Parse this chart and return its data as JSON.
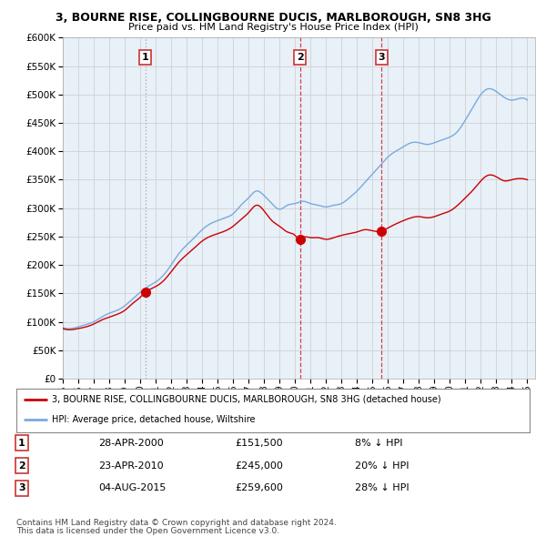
{
  "title1": "3, BOURNE RISE, COLLINGBOURNE DUCIS, MARLBOROUGH, SN8 3HG",
  "title2": "Price paid vs. HM Land Registry's House Price Index (HPI)",
  "ylim": [
    0,
    600000
  ],
  "yticks": [
    0,
    50000,
    100000,
    150000,
    200000,
    250000,
    300000,
    350000,
    400000,
    450000,
    500000,
    550000,
    600000
  ],
  "sale_dates": [
    2000.32,
    2010.31,
    2015.59
  ],
  "sale_prices": [
    151500,
    245000,
    259600
  ],
  "sale_labels": [
    "1",
    "2",
    "3"
  ],
  "vline_styles": [
    "dotted",
    "dashed",
    "dashed"
  ],
  "vline_colors": [
    "#aaaaaa",
    "#cc3333",
    "#cc3333"
  ],
  "legend_red": "3, BOURNE RISE, COLLINGBOURNE DUCIS, MARLBOROUGH, SN8 3HG (detached house)",
  "legend_blue": "HPI: Average price, detached house, Wiltshire",
  "table_rows": [
    [
      "1",
      "28-APR-2000",
      "£151,500",
      "8% ↓ HPI"
    ],
    [
      "2",
      "23-APR-2010",
      "£245,000",
      "20% ↓ HPI"
    ],
    [
      "3",
      "04-AUG-2015",
      "£259,600",
      "28% ↓ HPI"
    ]
  ],
  "footnote1": "Contains HM Land Registry data © Crown copyright and database right 2024.",
  "footnote2": "This data is licensed under the Open Government Licence v3.0.",
  "red_color": "#cc0000",
  "blue_color": "#7aaadd",
  "chart_bg": "#e8f0f8",
  "bg_color": "#ffffff",
  "grid_color": "#cccccc",
  "hpi_points": [
    [
      1995.0,
      90000
    ],
    [
      1995.5,
      88000
    ],
    [
      1996.0,
      91000
    ],
    [
      1996.5,
      95000
    ],
    [
      1997.0,
      100000
    ],
    [
      1997.5,
      108000
    ],
    [
      1998.0,
      115000
    ],
    [
      1998.5,
      120000
    ],
    [
      1999.0,
      128000
    ],
    [
      1999.5,
      140000
    ],
    [
      2000.0,
      152000
    ],
    [
      2000.5,
      162000
    ],
    [
      2001.0,
      170000
    ],
    [
      2001.5,
      182000
    ],
    [
      2002.0,
      200000
    ],
    [
      2002.5,
      220000
    ],
    [
      2003.0,
      235000
    ],
    [
      2003.5,
      248000
    ],
    [
      2004.0,
      262000
    ],
    [
      2004.5,
      272000
    ],
    [
      2005.0,
      278000
    ],
    [
      2005.5,
      283000
    ],
    [
      2006.0,
      290000
    ],
    [
      2006.5,
      305000
    ],
    [
      2007.0,
      318000
    ],
    [
      2007.5,
      330000
    ],
    [
      2008.0,
      322000
    ],
    [
      2008.5,
      308000
    ],
    [
      2009.0,
      298000
    ],
    [
      2009.5,
      305000
    ],
    [
      2010.0,
      308000
    ],
    [
      2010.5,
      312000
    ],
    [
      2011.0,
      308000
    ],
    [
      2011.5,
      305000
    ],
    [
      2012.0,
      302000
    ],
    [
      2012.5,
      305000
    ],
    [
      2013.0,
      308000
    ],
    [
      2013.5,
      318000
    ],
    [
      2014.0,
      330000
    ],
    [
      2014.5,
      345000
    ],
    [
      2015.0,
      360000
    ],
    [
      2015.5,
      375000
    ],
    [
      2016.0,
      390000
    ],
    [
      2016.5,
      400000
    ],
    [
      2017.0,
      408000
    ],
    [
      2017.5,
      415000
    ],
    [
      2018.0,
      415000
    ],
    [
      2018.5,
      412000
    ],
    [
      2019.0,
      415000
    ],
    [
      2019.5,
      420000
    ],
    [
      2020.0,
      425000
    ],
    [
      2020.5,
      435000
    ],
    [
      2021.0,
      455000
    ],
    [
      2021.5,
      478000
    ],
    [
      2022.0,
      500000
    ],
    [
      2022.5,
      510000
    ],
    [
      2023.0,
      505000
    ],
    [
      2023.5,
      495000
    ],
    [
      2024.0,
      490000
    ],
    [
      2024.5,
      493000
    ],
    [
      2025.0,
      490000
    ]
  ],
  "red_points": [
    [
      1995.0,
      88000
    ],
    [
      1995.5,
      86000
    ],
    [
      1996.0,
      88000
    ],
    [
      1996.5,
      91000
    ],
    [
      1997.0,
      96000
    ],
    [
      1997.5,
      103000
    ],
    [
      1998.0,
      108000
    ],
    [
      1998.5,
      113000
    ],
    [
      1999.0,
      120000
    ],
    [
      1999.5,
      132000
    ],
    [
      2000.0,
      143000
    ],
    [
      2000.32,
      151500
    ],
    [
      2000.5,
      155000
    ],
    [
      2001.0,
      162000
    ],
    [
      2001.5,
      172000
    ],
    [
      2002.0,
      188000
    ],
    [
      2002.5,
      205000
    ],
    [
      2003.0,
      218000
    ],
    [
      2003.5,
      230000
    ],
    [
      2004.0,
      242000
    ],
    [
      2004.5,
      250000
    ],
    [
      2005.0,
      255000
    ],
    [
      2005.5,
      260000
    ],
    [
      2006.0,
      268000
    ],
    [
      2006.5,
      280000
    ],
    [
      2007.0,
      292000
    ],
    [
      2007.5,
      305000
    ],
    [
      2008.0,
      295000
    ],
    [
      2008.5,
      278000
    ],
    [
      2009.0,
      268000
    ],
    [
      2009.5,
      258000
    ],
    [
      2010.0,
      252000
    ],
    [
      2010.31,
      245000
    ],
    [
      2010.5,
      248000
    ],
    [
      2011.0,
      248000
    ],
    [
      2011.5,
      248000
    ],
    [
      2012.0,
      245000
    ],
    [
      2012.5,
      248000
    ],
    [
      2013.0,
      252000
    ],
    [
      2013.5,
      255000
    ],
    [
      2014.0,
      258000
    ],
    [
      2014.5,
      262000
    ],
    [
      2015.0,
      260000
    ],
    [
      2015.59,
      259600
    ],
    [
      2016.0,
      265000
    ],
    [
      2016.5,
      272000
    ],
    [
      2017.0,
      278000
    ],
    [
      2017.5,
      283000
    ],
    [
      2018.0,
      285000
    ],
    [
      2018.5,
      283000
    ],
    [
      2019.0,
      285000
    ],
    [
      2019.5,
      290000
    ],
    [
      2020.0,
      295000
    ],
    [
      2020.5,
      305000
    ],
    [
      2021.0,
      318000
    ],
    [
      2021.5,
      332000
    ],
    [
      2022.0,
      348000
    ],
    [
      2022.5,
      358000
    ],
    [
      2023.0,
      355000
    ],
    [
      2023.5,
      348000
    ],
    [
      2024.0,
      350000
    ],
    [
      2024.5,
      352000
    ],
    [
      2025.0,
      350000
    ]
  ]
}
